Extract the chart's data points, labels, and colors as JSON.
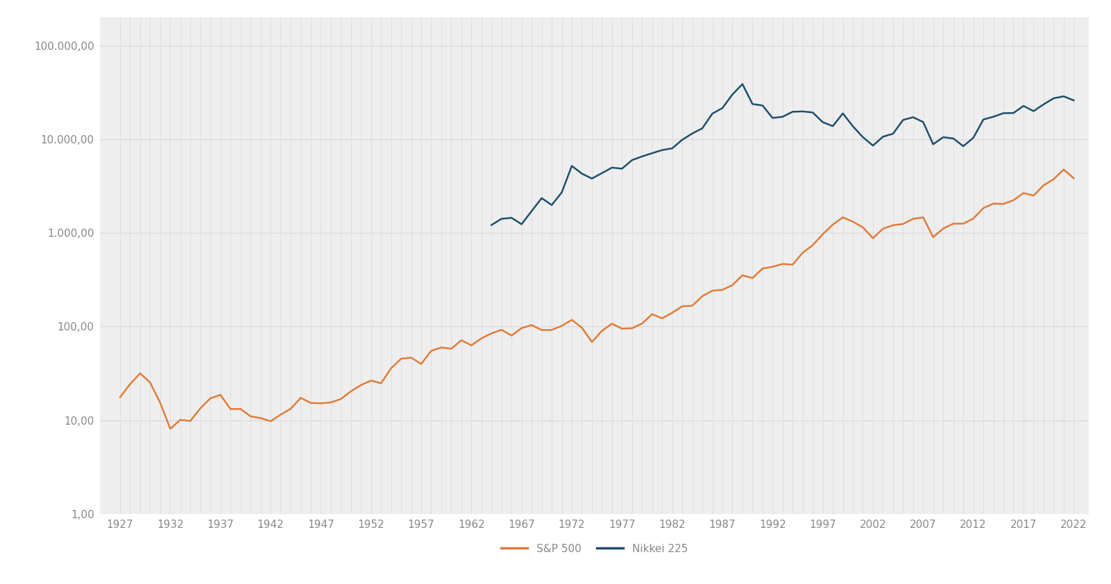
{
  "sp500": {
    "years": [
      1927,
      1928,
      1929,
      1930,
      1931,
      1932,
      1933,
      1934,
      1935,
      1936,
      1937,
      1938,
      1939,
      1940,
      1941,
      1942,
      1943,
      1944,
      1945,
      1946,
      1947,
      1948,
      1949,
      1950,
      1951,
      1952,
      1953,
      1954,
      1955,
      1956,
      1957,
      1958,
      1959,
      1960,
      1961,
      1962,
      1963,
      1964,
      1965,
      1966,
      1967,
      1968,
      1969,
      1970,
      1971,
      1972,
      1973,
      1974,
      1975,
      1976,
      1977,
      1978,
      1979,
      1980,
      1981,
      1982,
      1983,
      1984,
      1985,
      1986,
      1987,
      1988,
      1989,
      1990,
      1991,
      1992,
      1993,
      1994,
      1995,
      1996,
      1997,
      1998,
      1999,
      2000,
      2001,
      2002,
      2003,
      2004,
      2005,
      2006,
      2007,
      2008,
      2009,
      2010,
      2011,
      2012,
      2013,
      2014,
      2015,
      2016,
      2017,
      2018,
      2019,
      2020,
      2021,
      2022
    ],
    "values": [
      17.66,
      24.35,
      31.71,
      25.22,
      15.34,
      8.12,
      10.1,
      9.84,
      13.43,
      17.18,
      18.68,
      13.17,
      13.23,
      11.02,
      10.55,
      9.77,
      11.5,
      13.28,
      17.36,
      15.3,
      15.17,
      15.53,
      16.88,
      20.41,
      23.77,
      26.57,
      24.81,
      35.98,
      45.48,
      46.62,
      39.99,
      55.21,
      59.89,
      58.11,
      71.55,
      63.1,
      75.02,
      84.75,
      92.43,
      80.33,
      96.47,
      103.86,
      92.06,
      92.15,
      102.09,
      118.05,
      97.55,
      68.56,
      90.19,
      107.46,
      95.1,
      96.11,
      107.94,
      135.76,
      122.55,
      140.64,
      164.93,
      167.24,
      211.28,
      242.17,
      247.08,
      277.72,
      353.4,
      330.22,
      417.09,
      435.71,
      466.45,
      459.27,
      615.93,
      740.74,
      970.43,
      1229.23,
      1469.25,
      1320.28,
      1148.08,
      879.82,
      1111.92,
      1211.92,
      1248.29,
      1418.3,
      1468.36,
      903.25,
      1115.1,
      1257.64,
      1257.6,
      1426.19,
      1848.36,
      2058.9,
      2043.94,
      2238.83,
      2673.61,
      2506.85,
      3230.78,
      3756.07,
      4766.18,
      3839.5
    ]
  },
  "nikkei": {
    "years": [
      1964,
      1965,
      1966,
      1967,
      1968,
      1969,
      1970,
      1971,
      1972,
      1973,
      1974,
      1975,
      1976,
      1977,
      1978,
      1979,
      1980,
      1981,
      1982,
      1983,
      1984,
      1985,
      1986,
      1987,
      1988,
      1989,
      1990,
      1991,
      1992,
      1993,
      1994,
      1995,
      1996,
      1997,
      1998,
      1999,
      2000,
      2001,
      2002,
      2003,
      2004,
      2005,
      2006,
      2007,
      2008,
      2009,
      2010,
      2011,
      2012,
      2013,
      2014,
      2015,
      2016,
      2017,
      2018,
      2019,
      2020,
      2021,
      2022
    ],
    "values": [
      1216.58,
      1417.83,
      1452.1,
      1240.52,
      1714.89,
      2358.96,
      1987.14,
      2713.74,
      5207.94,
      4306.8,
      3817.22,
      4358.6,
      4990.85,
      4865.6,
      6001.85,
      6569.98,
      7116.38,
      7681.84,
      8016.67,
      9893.82,
      11542.6,
      13113.32,
      18820.55,
      21564.0,
      30159.0,
      38915.87,
      23848.71,
      22983.77,
      16924.95,
      17417.24,
      19723.06,
      19868.15,
      19361.35,
      15258.74,
      13842.17,
      18934.34,
      13785.69,
      10542.62,
      8578.95,
      10676.64,
      11488.76,
      16111.43,
      17225.83,
      15307.78,
      8859.56,
      10546.44,
      10228.92,
      8455.35,
      10395.18,
      16291.31,
      17450.77,
      19033.71,
      19114.37,
      22764.94,
      20014.77,
      23656.62,
      27444.17,
      28791.71,
      26094.5
    ]
  },
  "sp500_color": "#E07B39",
  "nikkei_color": "#1D4E6B",
  "background_color": "#FFFFFF",
  "plot_bg_color": "#EEEEEE",
  "vgrid_color": "#D8D8D8",
  "hgrid_color": "#D8D8D8",
  "text_color": "#888888",
  "line_width": 1.8,
  "yticks": [
    1.0,
    10.0,
    100.0,
    1000.0,
    10000.0,
    100000.0
  ],
  "ytick_labels": [
    "1,00",
    "10,00",
    "100,00",
    "1.000,00",
    "10.000,00",
    "100.000,00"
  ],
  "xticks": [
    1927,
    1932,
    1937,
    1942,
    1947,
    1952,
    1957,
    1962,
    1967,
    1972,
    1977,
    1982,
    1987,
    1992,
    1997,
    2002,
    2007,
    2012,
    2017,
    2022
  ],
  "ylim_min": 1.0,
  "ylim_max": 200000.0,
  "xlim_min": 1925.0,
  "xlim_max": 2023.5,
  "legend_sp500": "S&P 500",
  "legend_nikkei": "Nikkei 225",
  "vgrid_years_start": 1927,
  "vgrid_years_end": 2022
}
